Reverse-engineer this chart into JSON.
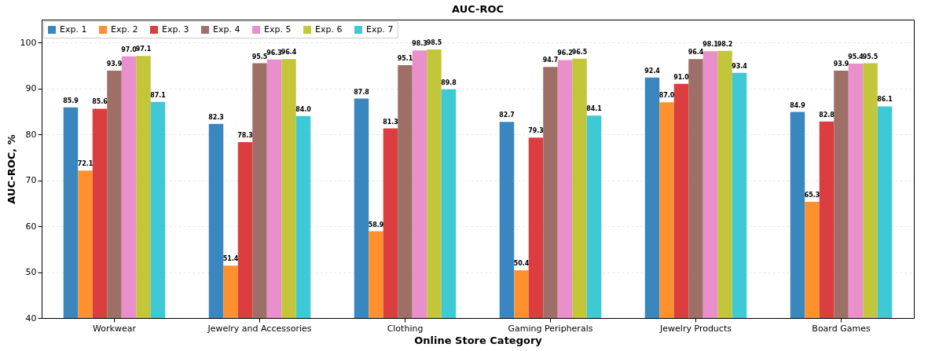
{
  "chart_data": {
    "type": "bar",
    "title": "AUC-ROC",
    "xlabel": "Online Store Category",
    "ylabel": "AUC-ROC, %",
    "categories": [
      "Workwear",
      "Jewelry and Accessories",
      "Clothing",
      "Gaming Peripherals",
      "Jewelry Products",
      "Board Games"
    ],
    "series": [
      {
        "name": "Exp. 1",
        "color": "#3a87c0",
        "values": [
          85.9,
          82.3,
          87.8,
          82.7,
          92.4,
          84.9
        ],
        "value_labels": [
          "85.9",
          "82.3",
          "87.8",
          "82.7",
          "92.4",
          "84.9"
        ]
      },
      {
        "name": "Exp. 2",
        "color": "#ff902e",
        "values": [
          72.1,
          51.4,
          58.9,
          50.4,
          87.0,
          65.3
        ],
        "value_labels": [
          "72.1",
          "51.4",
          "58.9",
          "50.4",
          "87.0",
          "65.3"
        ]
      },
      {
        "name": "Exp. 3",
        "color": "#dc3e3f",
        "values": [
          85.6,
          78.3,
          81.3,
          79.3,
          91.0,
          82.8
        ],
        "value_labels": [
          "85.6",
          "78.3",
          "81.3",
          "79.3",
          "91.0",
          "82.8"
        ]
      },
      {
        "name": "Exp. 4",
        "color": "#9e6f66",
        "values": [
          93.9,
          95.5,
          95.1,
          94.7,
          96.4,
          93.9
        ],
        "value_labels": [
          "93.9",
          "95.5",
          "95.1",
          "94.7",
          "96.4",
          "93.9"
        ]
      },
      {
        "name": "Exp. 5",
        "color": "#e88fcc",
        "values": [
          97.0,
          96.3,
          98.3,
          96.2,
          98.1,
          95.4
        ],
        "value_labels": [
          "97.0",
          "96.3",
          "98.3",
          "96.2",
          "98.1",
          "95.4"
        ]
      },
      {
        "name": "Exp. 6",
        "color": "#c3c63a",
        "values": [
          97.1,
          96.4,
          98.5,
          96.5,
          98.2,
          95.5
        ],
        "value_labels": [
          "97.1",
          "96.4",
          "98.5",
          "96.5",
          "98.2",
          "95.5"
        ]
      },
      {
        "name": "Exp. 7",
        "color": "#3fc9d5",
        "values": [
          87.1,
          84.0,
          89.8,
          84.1,
          93.4,
          86.1
        ],
        "value_labels": [
          "87.1",
          "84.0",
          "89.8",
          "84.1",
          "93.4",
          "86.1"
        ]
      }
    ],
    "ylim": [
      40,
      105
    ],
    "yticks": [
      40,
      50,
      60,
      70,
      80,
      90,
      100
    ],
    "grid": "y",
    "legend": "top left"
  }
}
